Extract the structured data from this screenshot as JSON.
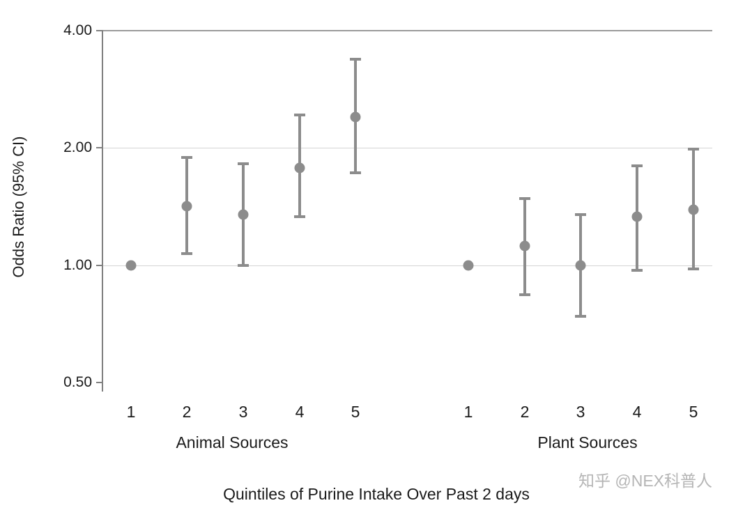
{
  "chart_data": {
    "type": "scatter",
    "subtype": "point-estimates-with-95ci-forest-style",
    "title": "",
    "ylabel": "Odds Ratio (95% CI)",
    "xlabel": "Quintiles of Purine Intake Over Past 2 days",
    "y_scale": "log",
    "ylim": [
      0.5,
      4.0
    ],
    "grid": "horizontal-only",
    "legend": null,
    "y_ticks": [
      {
        "label": "4.00",
        "value": 4.0,
        "line": "solid"
      },
      {
        "label": "2.00",
        "value": 2.0,
        "line": "light"
      },
      {
        "label": "1.00",
        "value": 1.0,
        "line": "light"
      },
      {
        "label": "0.50",
        "value": 0.5,
        "line": "none"
      }
    ],
    "groups": [
      {
        "label": "Animal Sources",
        "points": [
          {
            "x": "1",
            "or": 1.0,
            "lo": null,
            "hi": null
          },
          {
            "x": "2",
            "or": 1.42,
            "lo": 1.07,
            "hi": 1.89
          },
          {
            "x": "3",
            "or": 1.35,
            "lo": 1.0,
            "hi": 1.82
          },
          {
            "x": "4",
            "or": 1.78,
            "lo": 1.33,
            "hi": 2.43
          },
          {
            "x": "5",
            "or": 2.4,
            "lo": 1.73,
            "hi": 3.38
          }
        ]
      },
      {
        "label": "Plant Sources",
        "points": [
          {
            "x": "1",
            "or": 1.0,
            "lo": null,
            "hi": null
          },
          {
            "x": "2",
            "or": 1.12,
            "lo": 0.84,
            "hi": 1.48
          },
          {
            "x": "3",
            "or": 1.0,
            "lo": 0.74,
            "hi": 1.35
          },
          {
            "x": "4",
            "or": 1.33,
            "lo": 0.97,
            "hi": 1.8
          },
          {
            "x": "5",
            "or": 1.39,
            "lo": 0.98,
            "hi": 1.99
          }
        ]
      }
    ],
    "marker_color": "#8c8c8c",
    "grid_color": "#d4d4d4",
    "axis_color": "#808080",
    "top_line_color": "#9a9a9a",
    "text_color": "#1a1a1a"
  },
  "watermark": {
    "text": "知乎 @NEX科普人",
    "color": "#b5b5b5"
  }
}
